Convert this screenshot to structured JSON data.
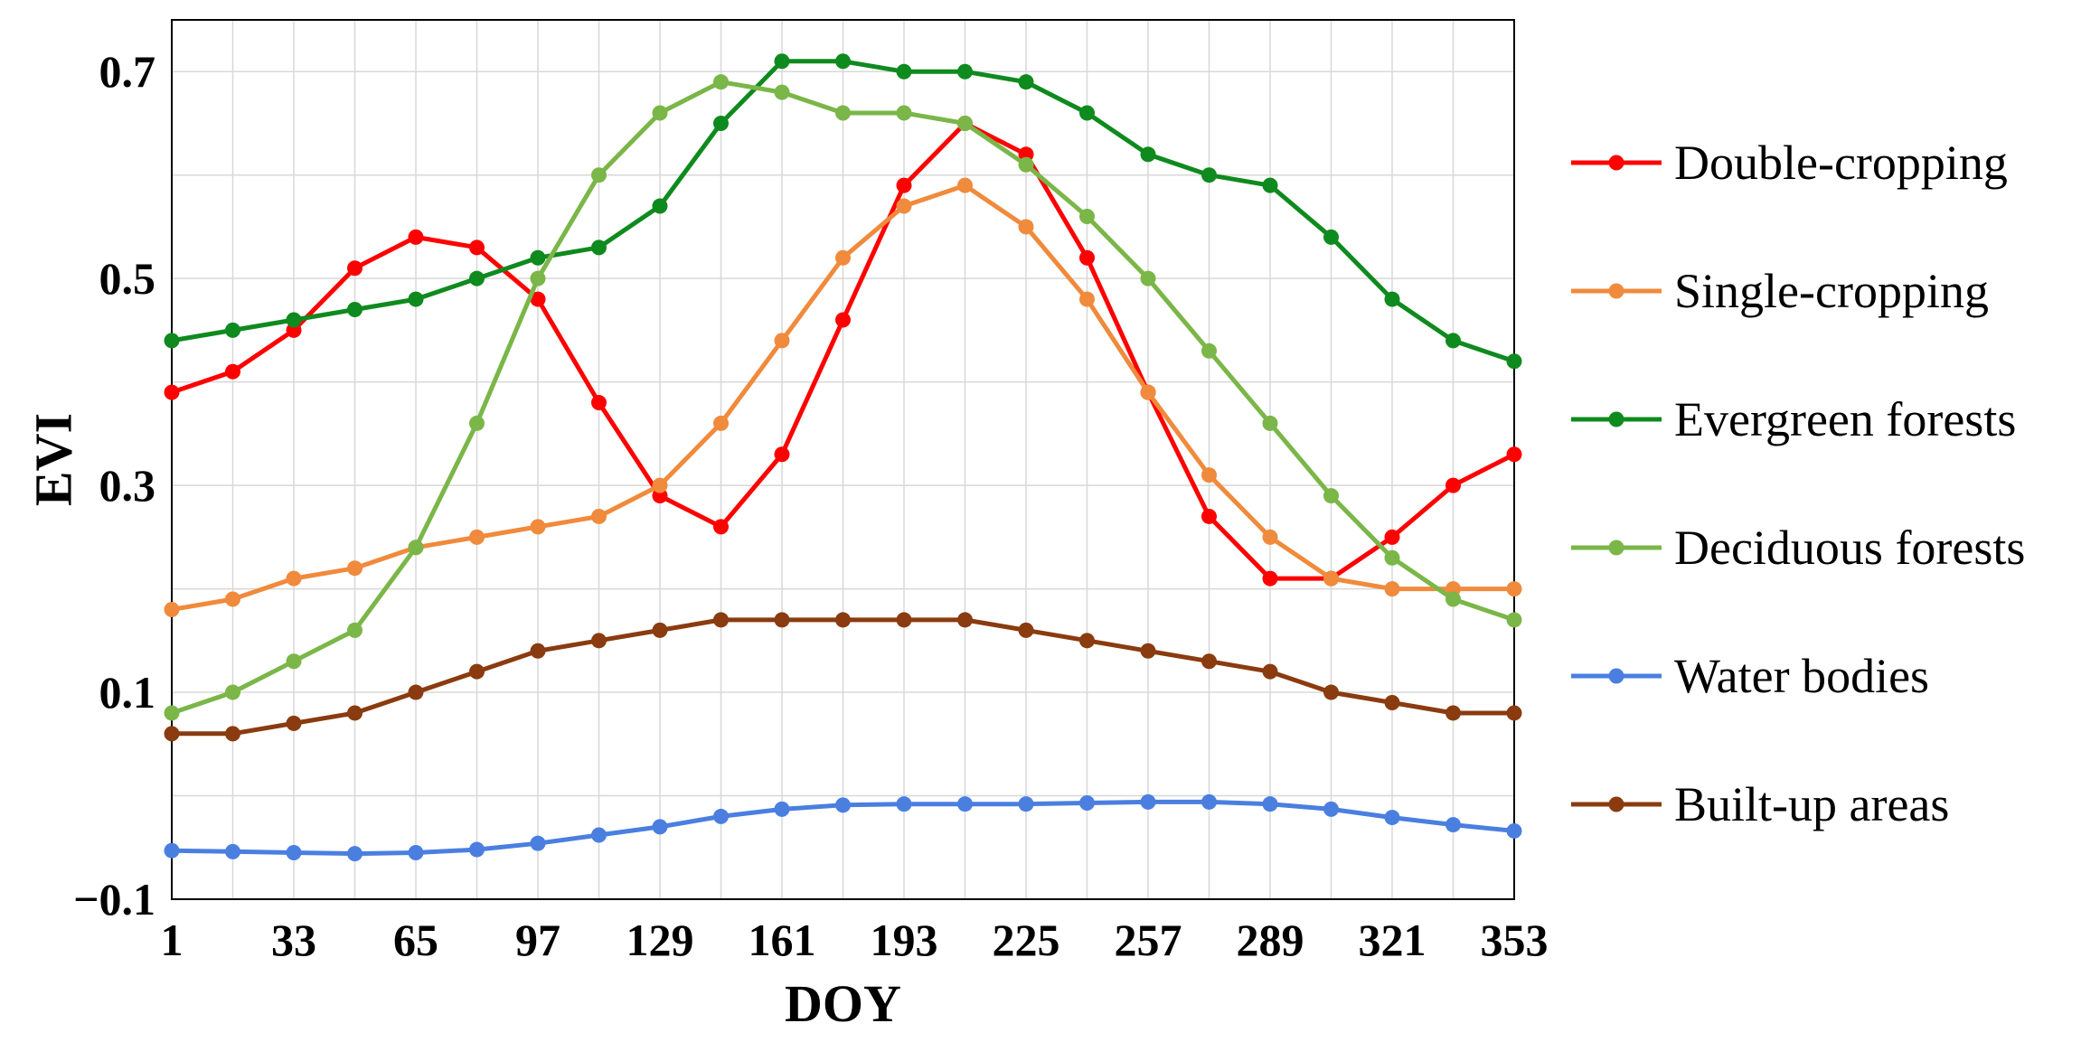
{
  "chart_data": {
    "type": "line",
    "xlabel": "DOY",
    "ylabel": "EVI",
    "xlim": [
      1,
      353
    ],
    "ylim": [
      -0.1,
      0.75
    ],
    "x_ticks": [
      1,
      33,
      65,
      97,
      129,
      161,
      193,
      225,
      257,
      289,
      321,
      353
    ],
    "x_tick_labels": [
      "1",
      "33",
      "65",
      "97",
      "129",
      "161",
      "193",
      "225",
      "257",
      "289",
      "321",
      "353"
    ],
    "y_ticks": [
      -0.1,
      0.1,
      0.3,
      0.5,
      0.7
    ],
    "y_tick_labels": [
      "−0.1",
      "0.1",
      "0.3",
      "0.5",
      "0.7"
    ],
    "grid": true,
    "legend_position": "right",
    "x": [
      1,
      17,
      33,
      49,
      65,
      81,
      97,
      113,
      129,
      145,
      161,
      177,
      193,
      209,
      225,
      241,
      257,
      273,
      289,
      305,
      321,
      337,
      353
    ],
    "series": [
      {
        "name": "Double-cropping",
        "color": "#ff0000",
        "values": [
          0.39,
          0.41,
          0.45,
          0.51,
          0.54,
          0.53,
          0.48,
          0.38,
          0.29,
          0.26,
          0.33,
          0.46,
          0.59,
          0.65,
          0.62,
          0.52,
          0.39,
          0.27,
          0.21,
          0.21,
          0.25,
          0.3,
          0.33
        ]
      },
      {
        "name": "Single-cropping",
        "color": "#f08a3c",
        "values": [
          0.18,
          0.19,
          0.21,
          0.22,
          0.24,
          0.25,
          0.26,
          0.27,
          0.3,
          0.36,
          0.44,
          0.52,
          0.57,
          0.59,
          0.55,
          0.48,
          0.39,
          0.31,
          0.25,
          0.21,
          0.2,
          0.2,
          0.2
        ]
      },
      {
        "name": "Evergreen forests",
        "color": "#0f8a1e",
        "values": [
          0.44,
          0.45,
          0.46,
          0.47,
          0.48,
          0.5,
          0.52,
          0.53,
          0.57,
          0.65,
          0.71,
          0.71,
          0.7,
          0.7,
          0.69,
          0.66,
          0.62,
          0.6,
          0.59,
          0.54,
          0.48,
          0.44,
          0.42
        ]
      },
      {
        "name": "Deciduous forests",
        "color": "#7ab648",
        "values": [
          0.08,
          0.1,
          0.13,
          0.16,
          0.24,
          0.36,
          0.5,
          0.6,
          0.66,
          0.69,
          0.68,
          0.66,
          0.66,
          0.65,
          0.61,
          0.56,
          0.5,
          0.43,
          0.36,
          0.29,
          0.23,
          0.19,
          0.17
        ]
      },
      {
        "name": "Water bodies",
        "color": "#4a7fe0",
        "values": [
          -0.053,
          -0.054,
          -0.055,
          -0.056,
          -0.055,
          -0.052,
          -0.046,
          -0.038,
          -0.03,
          -0.02,
          -0.013,
          -0.009,
          -0.008,
          -0.008,
          -0.008,
          -0.007,
          -0.006,
          -0.006,
          -0.008,
          -0.013,
          -0.021,
          -0.028,
          -0.034
        ]
      },
      {
        "name": "Built-up areas",
        "color": "#8a3b0f",
        "values": [
          0.06,
          0.06,
          0.07,
          0.08,
          0.1,
          0.12,
          0.14,
          0.15,
          0.16,
          0.17,
          0.17,
          0.17,
          0.17,
          0.17,
          0.16,
          0.15,
          0.14,
          0.13,
          0.12,
          0.1,
          0.09,
          0.08,
          0.08
        ]
      }
    ]
  }
}
